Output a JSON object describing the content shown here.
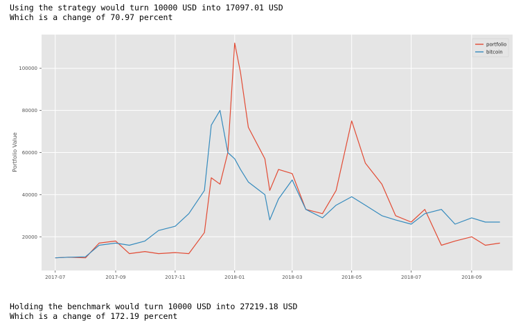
{
  "output_top": {
    "line1": "Using the strategy would turn 10000 USD into 17097.01 USD",
    "line2": "Which is a change of 70.97 percent"
  },
  "output_bottom": {
    "line1": "Holding the benchmark would turn 10000 USD into 27219.18 USD",
    "line2": "Which is a change of 172.19 percent"
  },
  "chart_data": {
    "type": "line",
    "title": "",
    "xlabel": "",
    "ylabel": "Portfolio Value",
    "x_ticks": [
      "2017-07",
      "2017-09",
      "2017-11",
      "2018-01",
      "2018-03",
      "2018-05",
      "2018-07",
      "2018-09"
    ],
    "y_ticks": [
      20000,
      40000,
      60000,
      80000,
      100000
    ],
    "ylim": [
      4000,
      116000
    ],
    "grid": true,
    "legend_position": "top-right",
    "x_dates": [
      "2017-07-01",
      "2017-07-15",
      "2017-08-01",
      "2017-08-15",
      "2017-09-01",
      "2017-09-15",
      "2017-10-01",
      "2017-10-15",
      "2017-11-01",
      "2017-11-15",
      "2017-12-01",
      "2017-12-08",
      "2017-12-17",
      "2017-12-25",
      "2018-01-01",
      "2018-01-07",
      "2018-01-15",
      "2018-02-01",
      "2018-02-06",
      "2018-02-15",
      "2018-03-01",
      "2018-03-15",
      "2018-04-01",
      "2018-04-15",
      "2018-05-01",
      "2018-05-15",
      "2018-06-01",
      "2018-06-15",
      "2018-07-01",
      "2018-07-15",
      "2018-08-01",
      "2018-08-15",
      "2018-09-01",
      "2018-09-15",
      "2018-09-30"
    ],
    "series": [
      {
        "name": "portfolio",
        "color": "#e24a33",
        "values": [
          10000,
          10300,
          10000,
          17000,
          18000,
          12000,
          13000,
          12000,
          12500,
          12000,
          22000,
          48000,
          45000,
          60000,
          112000,
          98000,
          72000,
          57000,
          42000,
          52000,
          50000,
          33000,
          31000,
          42000,
          75000,
          55000,
          45000,
          30000,
          27000,
          33000,
          16000,
          18000,
          20000,
          16000,
          17000
        ]
      },
      {
        "name": "bitcoin",
        "color": "#348abd",
        "values": [
          10000,
          10300,
          10500,
          16000,
          17000,
          16000,
          18000,
          23000,
          25000,
          31000,
          42000,
          73000,
          80000,
          60000,
          57000,
          52000,
          46000,
          40000,
          28000,
          38000,
          47000,
          33000,
          29000,
          35000,
          39000,
          35000,
          30000,
          28000,
          26000,
          31000,
          33000,
          26000,
          29000,
          27000,
          27000
        ]
      }
    ]
  }
}
